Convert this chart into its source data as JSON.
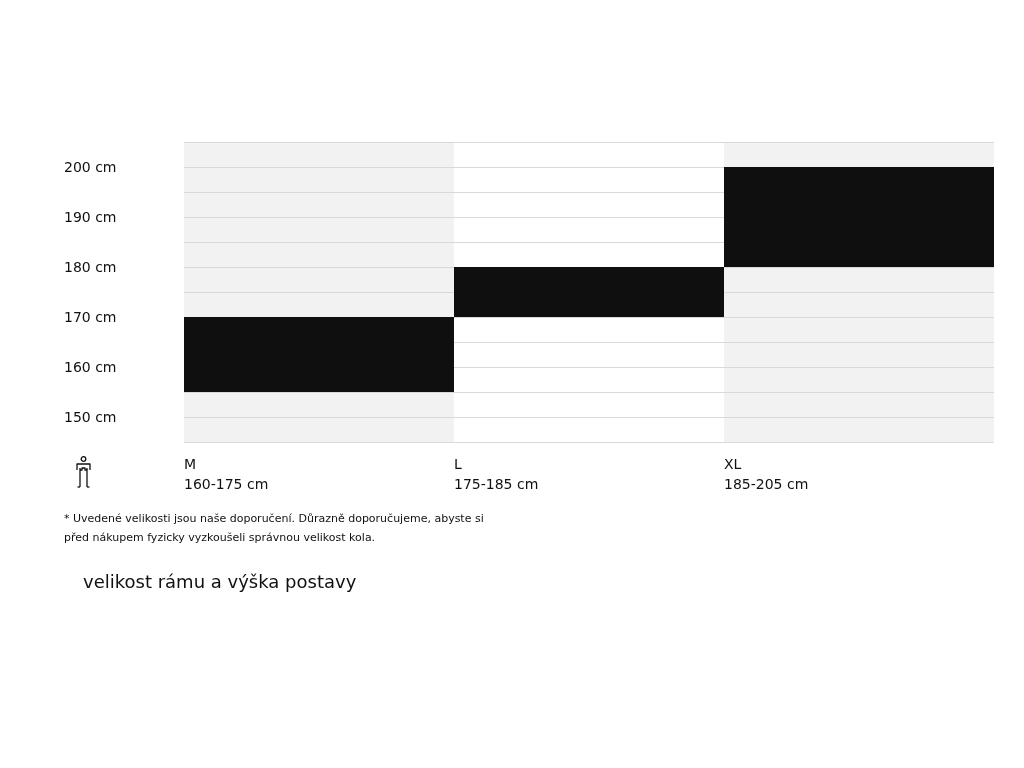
{
  "chart_data": {
    "type": "bar",
    "categories": [
      "M\n160-175 cm",
      "L\n175-185 cm",
      "XL\n185-205 cm"
    ],
    "base": [
      155,
      170,
      180
    ],
    "values": [
      15,
      10,
      20
    ],
    "color": "#0f0f0f",
    "ylim": [
      145,
      205
    ],
    "yticks": [
      {
        "value": 145,
        "label": null
      },
      {
        "value": 150,
        "label": "150 cm"
      },
      {
        "value": 155,
        "label": null
      },
      {
        "value": 160,
        "label": "160 cm"
      },
      {
        "value": 165,
        "label": null
      },
      {
        "value": 170,
        "label": "170 cm"
      },
      {
        "value": 175,
        "label": null
      },
      {
        "value": 180,
        "label": "180 cm"
      },
      {
        "value": 185,
        "label": null
      },
      {
        "value": 190,
        "label": "190 cm"
      },
      {
        "value": 195,
        "label": null
      },
      {
        "value": 200,
        "label": "200 cm"
      },
      {
        "value": 205,
        "label": null
      }
    ],
    "grid": "y",
    "annotations": [
      "* Uvedené velikosti jsou naše doporučení. Důrazně doporučujeme, abyste si\npřed nákupem fyzicky vyzkoušeli správnou velikost kola.",
      "velikost rámu a výška postavy"
    ]
  }
}
